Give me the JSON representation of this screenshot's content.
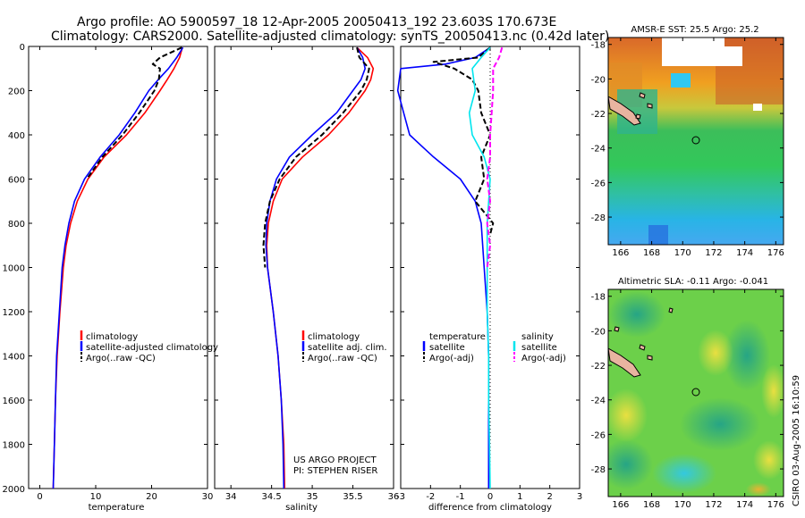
{
  "title": {
    "line1": "Argo profile: AO 5900597_18 12-Apr-2005 20050413_192 23.603S 170.673E",
    "line2": "Climatology: CARS2000. Satellite-adjusted climatology: synTS_20050413.nc (0.42d later)"
  },
  "credit": {
    "line1": "US ARGO PROJECT",
    "line2": "PI: STEPHEN RISER"
  },
  "side_stamp": "CSIRO 03-Aug-2005 16:10:59",
  "colors": {
    "climatology": "#ff0000",
    "satellite": "#0000ff",
    "argo": "#000000",
    "salinity_satellite": "#00e5ee",
    "salinity_argo": "#ff00ff"
  },
  "chart_data": [
    {
      "type": "line",
      "xlabel": "temperature",
      "ylabel": "",
      "xlim": [
        -2,
        30
      ],
      "ylim": [
        2000,
        0
      ],
      "xticks": [
        0,
        10,
        20,
        30
      ],
      "yticks": [
        0,
        200,
        400,
        600,
        800,
        1000,
        1200,
        1400,
        1600,
        1800,
        2000
      ],
      "legend": {
        "position": "bottom-right",
        "entries": [
          "climatology",
          "satellite-adjusted climatology",
          "Argo(..raw -QC)"
        ]
      },
      "series": [
        {
          "name": "climatology",
          "color": "red",
          "dash": "solid",
          "depth": [
            5,
            50,
            100,
            150,
            200,
            300,
            400,
            500,
            600,
            700,
            800,
            900,
            1000,
            1200,
            1400,
            1600,
            1800,
            2000
          ],
          "values": [
            25.5,
            25.0,
            24.0,
            22.8,
            21.5,
            18.8,
            15.5,
            11.5,
            8.6,
            6.7,
            5.5,
            4.7,
            4.2,
            3.6,
            3.1,
            2.8,
            2.6,
            2.4
          ]
        },
        {
          "name": "satellite-adjusted climatology",
          "color": "blue",
          "dash": "solid",
          "depth": [
            5,
            50,
            100,
            150,
            200,
            300,
            400,
            500,
            600,
            700,
            800,
            900,
            1000,
            1200,
            1400,
            1600,
            1800,
            2000
          ],
          "values": [
            25.6,
            24.5,
            23.0,
            21.2,
            19.5,
            17.0,
            14.2,
            10.8,
            8.0,
            6.2,
            5.2,
            4.5,
            4.0,
            3.5,
            3.0,
            2.8,
            2.6,
            2.4
          ]
        },
        {
          "name": "Argo(..raw -QC)",
          "color": "black",
          "dash": "dashed",
          "depth": [
            5,
            50,
            80,
            100,
            150,
            200,
            300,
            400,
            500,
            600
          ],
          "values": [
            25.4,
            21.5,
            20.2,
            21.5,
            21.3,
            20.5,
            17.8,
            14.8,
            11.2,
            8.4
          ]
        }
      ]
    },
    {
      "type": "line",
      "xlabel": "salinity",
      "ylabel": "",
      "xlim": [
        33.8,
        36
      ],
      "ylim": [
        2000,
        0
      ],
      "xticks": [
        34,
        34.5,
        35,
        35.5,
        36
      ],
      "yticks": [
        0,
        200,
        400,
        600,
        800,
        1000,
        1200,
        1400,
        1600,
        1800,
        2000
      ],
      "legend": {
        "position": "bottom-right",
        "entries": [
          "climatology",
          "satellite adj. clim.",
          "Argo(..raw -QC)"
        ]
      },
      "series": [
        {
          "name": "climatology",
          "color": "red",
          "dash": "solid",
          "depth": [
            5,
            50,
            100,
            150,
            200,
            300,
            400,
            500,
            600,
            700,
            800,
            900,
            1000,
            1200,
            1400,
            1600,
            1800,
            2000
          ],
          "values": [
            35.55,
            35.68,
            35.75,
            35.72,
            35.65,
            35.45,
            35.2,
            34.88,
            34.63,
            34.52,
            34.46,
            34.44,
            34.45,
            34.52,
            34.58,
            34.62,
            34.65,
            34.66
          ]
        },
        {
          "name": "satellite adj. clim.",
          "color": "blue",
          "dash": "solid",
          "depth": [
            5,
            50,
            100,
            150,
            200,
            300,
            400,
            500,
            600,
            700,
            800,
            900,
            1000,
            1200,
            1400,
            1600,
            1800,
            2000
          ],
          "values": [
            35.55,
            35.62,
            35.65,
            35.6,
            35.5,
            35.3,
            35.0,
            34.72,
            34.56,
            34.48,
            34.44,
            34.43,
            34.45,
            34.52,
            34.58,
            34.62,
            34.64,
            34.65
          ]
        },
        {
          "name": "Argo(..raw -QC)",
          "color": "black",
          "dash": "dashed",
          "depth": [
            5,
            50,
            100,
            150,
            200,
            300,
            400,
            500,
            600,
            700,
            800,
            900,
            1000
          ],
          "values": [
            35.55,
            35.58,
            35.7,
            35.67,
            35.6,
            35.38,
            35.12,
            34.8,
            34.6,
            34.48,
            34.42,
            34.4,
            34.42
          ]
        }
      ]
    },
    {
      "type": "line",
      "xlabel": "difference from climatology",
      "ylabel": "",
      "xlim": [
        -3,
        3
      ],
      "ylim": [
        2000,
        0
      ],
      "xticks": [
        -3,
        -2,
        -1,
        0,
        1,
        2,
        3
      ],
      "yticks": [
        0,
        200,
        400,
        600,
        800,
        1000,
        1200,
        1400,
        1600,
        1800,
        2000
      ],
      "legend": {
        "position": "bottom",
        "entries": [
          "temperature",
          "satellite",
          "Argo(-adj)",
          "salinity",
          "satellite",
          "Argo(-adj)"
        ]
      },
      "series": [
        {
          "name": "temperature satellite",
          "color": "blue",
          "dash": "solid",
          "depth": [
            5,
            50,
            80,
            100,
            200,
            300,
            400,
            450,
            500,
            600,
            700,
            800,
            1000,
            1200,
            1400,
            1600,
            1800,
            2000
          ],
          "values": [
            0,
            -0.5,
            -1.5,
            -3.0,
            -3.1,
            -2.9,
            -2.7,
            -2.3,
            -1.9,
            -1.0,
            -0.5,
            -0.3,
            -0.2,
            -0.1,
            -0.05,
            -0.05,
            -0.05,
            -0.05
          ]
        },
        {
          "name": "temperature Argo(-adj)",
          "color": "black",
          "dash": "dashed",
          "depth": [
            5,
            50,
            70,
            100,
            150,
            200,
            300,
            400,
            500,
            600,
            700,
            800,
            850
          ],
          "values": [
            0,
            -0.4,
            -1.9,
            -1.2,
            -0.6,
            -0.4,
            -0.3,
            0.0,
            -0.3,
            -0.2,
            -0.5,
            0.1,
            0.0
          ]
        },
        {
          "name": "salinity satellite",
          "color": "cyan",
          "dash": "solid",
          "depth": [
            5,
            50,
            100,
            200,
            300,
            400,
            500,
            600,
            800,
            1000,
            1200,
            1400,
            1600,
            1800,
            2000
          ],
          "values": [
            0,
            -0.3,
            -0.6,
            -0.5,
            -0.7,
            -0.6,
            -0.2,
            0.0,
            -0.1,
            -0.1,
            -0.1,
            -0.05,
            -0.05,
            -0.02,
            0.0
          ]
        },
        {
          "name": "salinity Argo(-adj)",
          "color": "magenta",
          "dash": "dashed",
          "depth": [
            5,
            50,
            100,
            200,
            300,
            400,
            500,
            600,
            700,
            800,
            900,
            1000
          ],
          "values": [
            0.4,
            0.3,
            0.1,
            0.1,
            0.05,
            0.0,
            0.0,
            -0.1,
            0.0,
            -0.1,
            0.0,
            -0.1
          ]
        }
      ]
    },
    {
      "type": "heatmap",
      "title": "AMSR-E SST: 25.5 Argo: 25.2",
      "xticks": [
        166,
        168,
        170,
        172,
        174,
        176
      ],
      "yticks": [
        -18,
        -20,
        -22,
        -24,
        -26,
        -28
      ],
      "xlim": [
        165.2,
        176.5
      ],
      "ylim": [
        -29.6,
        -17.6
      ],
      "marker": {
        "lon": 170.673,
        "lat": -23.603
      }
    },
    {
      "type": "heatmap",
      "title": "Altimetric SLA: -0.11 Argo: -0.041",
      "xticks": [
        166,
        168,
        170,
        172,
        174,
        176
      ],
      "yticks": [
        -18,
        -20,
        -22,
        -24,
        -26,
        -28
      ],
      "xlim": [
        165.2,
        176.5
      ],
      "ylim": [
        -29.6,
        -17.6
      ],
      "marker": {
        "lon": 170.673,
        "lat": -23.603
      }
    }
  ]
}
